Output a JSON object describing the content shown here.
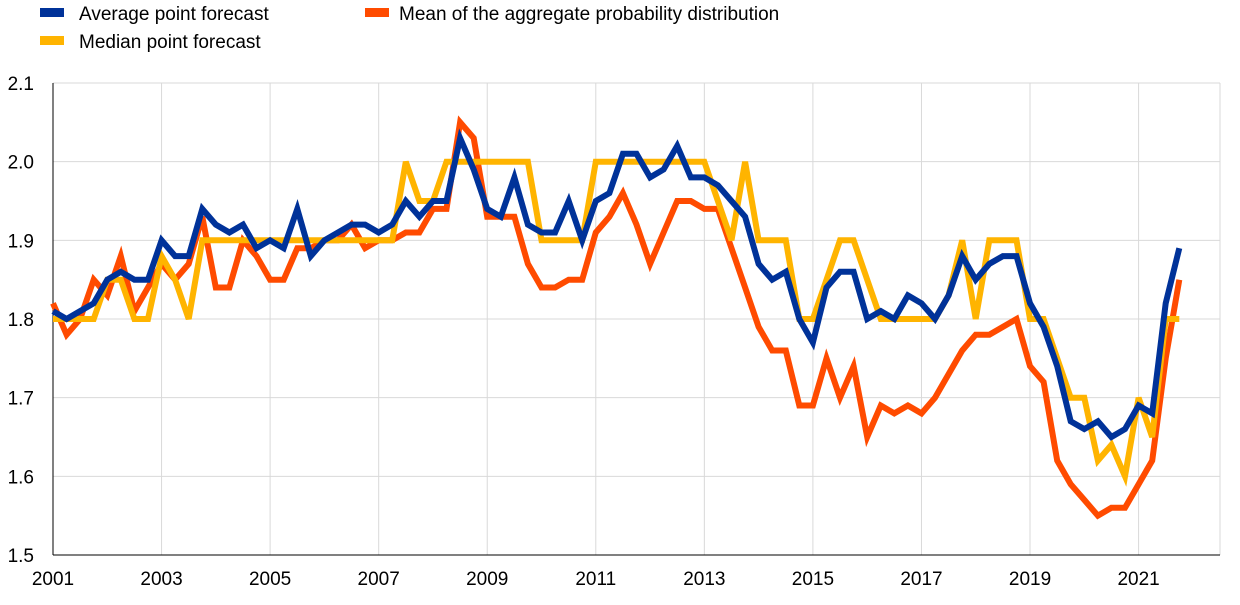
{
  "chart_data": {
    "type": "line",
    "title": "",
    "xlabel": "",
    "ylabel": "",
    "ylim": [
      1.5,
      2.1
    ],
    "xlim": [
      2001.0,
      2022.5
    ],
    "y_ticks": [
      "1.5",
      "1.6",
      "1.7",
      "1.8",
      "1.9",
      "2.0",
      "2.1"
    ],
    "x_ticks": [
      "2001",
      "2003",
      "2005",
      "2007",
      "2009",
      "2011",
      "2013",
      "2015",
      "2017",
      "2019",
      "2021"
    ],
    "grid": true,
    "legend_position": "top-left",
    "x_step": 0.25,
    "series": [
      {
        "name": "Average point forecast",
        "color": "#003299",
        "values": [
          1.81,
          1.8,
          1.81,
          1.82,
          1.85,
          1.86,
          1.85,
          1.85,
          1.9,
          1.88,
          1.88,
          1.94,
          1.92,
          1.91,
          1.92,
          1.89,
          1.9,
          1.89,
          1.94,
          1.88,
          1.9,
          1.91,
          1.92,
          1.92,
          1.91,
          1.92,
          1.95,
          1.93,
          1.95,
          1.95,
          2.03,
          1.99,
          1.94,
          1.93,
          1.98,
          1.92,
          1.91,
          1.91,
          1.95,
          1.9,
          1.95,
          1.96,
          2.01,
          2.01,
          1.98,
          1.99,
          2.02,
          1.98,
          1.98,
          1.97,
          1.95,
          1.93,
          1.87,
          1.85,
          1.86,
          1.8,
          1.77,
          1.84,
          1.86,
          1.86,
          1.8,
          1.81,
          1.8,
          1.83,
          1.82,
          1.8,
          1.83,
          1.88,
          1.85,
          1.87,
          1.88,
          1.88,
          1.82,
          1.79,
          1.74,
          1.67,
          1.66,
          1.67,
          1.65,
          1.66,
          1.69,
          1.68,
          1.82,
          1.89
        ]
      },
      {
        "name": "Median point forecast",
        "color": "#FFB400",
        "values": [
          1.8,
          1.8,
          1.8,
          1.8,
          1.85,
          1.85,
          1.8,
          1.8,
          1.88,
          1.85,
          1.8,
          1.9,
          1.9,
          1.9,
          1.9,
          1.9,
          1.9,
          1.9,
          1.9,
          1.9,
          1.9,
          1.9,
          1.9,
          1.9,
          1.9,
          1.9,
          2.0,
          1.95,
          1.95,
          2.0,
          2.0,
          2.0,
          2.0,
          2.0,
          2.0,
          2.0,
          1.9,
          1.9,
          1.9,
          1.9,
          2.0,
          2.0,
          2.0,
          2.0,
          2.0,
          2.0,
          2.0,
          2.0,
          2.0,
          1.95,
          1.9,
          2.0,
          1.9,
          1.9,
          1.9,
          1.8,
          1.8,
          1.85,
          1.9,
          1.9,
          1.85,
          1.8,
          1.8,
          1.8,
          1.8,
          1.8,
          1.83,
          1.9,
          1.8,
          1.9,
          1.9,
          1.9,
          1.8,
          1.8,
          1.75,
          1.7,
          1.7,
          1.62,
          1.64,
          1.6,
          1.7,
          1.65,
          1.8,
          1.8
        ]
      },
      {
        "name": "Mean of the aggregate probability distribution",
        "color": "#FF4B00",
        "values": [
          1.82,
          1.78,
          1.8,
          1.85,
          1.83,
          1.88,
          1.81,
          1.84,
          1.87,
          1.85,
          1.87,
          1.93,
          1.84,
          1.84,
          1.9,
          1.88,
          1.85,
          1.85,
          1.89,
          1.89,
          1.9,
          1.9,
          1.92,
          1.89,
          1.9,
          1.9,
          1.91,
          1.91,
          1.94,
          1.94,
          2.05,
          2.03,
          1.93,
          1.93,
          1.93,
          1.87,
          1.84,
          1.84,
          1.85,
          1.85,
          1.91,
          1.93,
          1.96,
          1.92,
          1.87,
          1.91,
          1.95,
          1.95,
          1.94,
          1.94,
          1.89,
          1.84,
          1.79,
          1.76,
          1.76,
          1.69,
          1.69,
          1.75,
          1.7,
          1.74,
          1.65,
          1.69,
          1.68,
          1.69,
          1.68,
          1.7,
          1.73,
          1.76,
          1.78,
          1.78,
          1.79,
          1.8,
          1.74,
          1.72,
          1.62,
          1.59,
          1.57,
          1.55,
          1.56,
          1.56,
          1.59,
          1.62,
          1.75,
          1.85
        ]
      }
    ]
  }
}
